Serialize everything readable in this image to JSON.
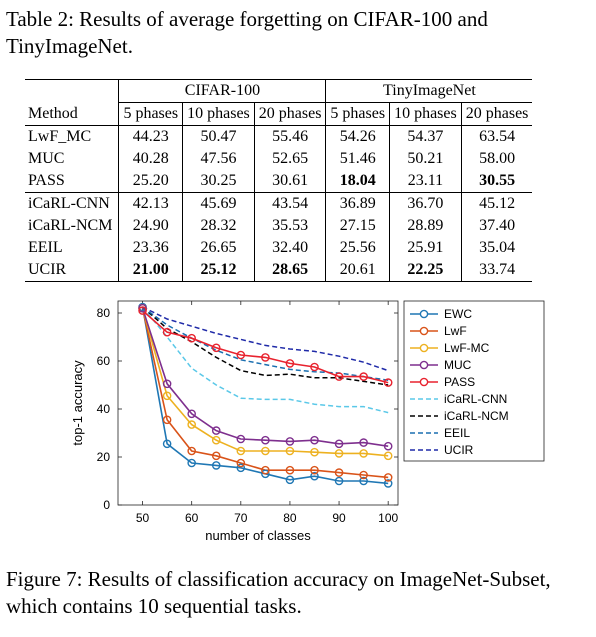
{
  "table_caption": "Table 2: Results of average forgetting on CIFAR-100 and TinyImageNet.",
  "table": {
    "group_headers": [
      "CIFAR-100",
      "TinyImageNet"
    ],
    "method_header": "Method",
    "phase_headers": [
      "5 phases",
      "10 phases",
      "20 phases",
      "5 phases",
      "10 phases",
      "20 phases"
    ],
    "rows": [
      {
        "method": "LwF_MC",
        "values": [
          "44.23",
          "50.47",
          "55.46",
          "54.26",
          "54.37",
          "63.54"
        ],
        "bold": []
      },
      {
        "method": "MUC",
        "values": [
          "40.28",
          "47.56",
          "52.65",
          "51.46",
          "50.21",
          "58.00"
        ],
        "bold": []
      },
      {
        "method": "PASS",
        "values": [
          "25.20",
          "30.25",
          "30.61",
          "18.04",
          "23.11",
          "30.55"
        ],
        "bold": [
          3,
          5
        ]
      },
      {
        "method": "iCaRL-CNN",
        "values": [
          "42.13",
          "45.69",
          "43.54",
          "36.89",
          "36.70",
          "45.12"
        ],
        "bold": []
      },
      {
        "method": "iCaRL-NCM",
        "values": [
          "24.90",
          "28.32",
          "35.53",
          "27.15",
          "28.89",
          "37.40"
        ],
        "bold": []
      },
      {
        "method": "EEIL",
        "values": [
          "23.36",
          "26.65",
          "32.40",
          "25.56",
          "25.91",
          "35.04"
        ],
        "bold": []
      },
      {
        "method": "UCIR",
        "values": [
          "21.00",
          "25.12",
          "28.65",
          "20.61",
          "22.25",
          "33.74"
        ],
        "bold": [
          0,
          1,
          2,
          4
        ]
      }
    ]
  },
  "figure_caption": "Figure 7: Results of classification accuracy on ImageNet-Subset, which contains 10 sequential tasks.",
  "chart_data": {
    "type": "line",
    "xlabel": "number of classes",
    "ylabel": "top-1 accuracy",
    "xlim": [
      45,
      102
    ],
    "ylim": [
      0,
      85
    ],
    "xticks": [
      50,
      60,
      70,
      80,
      90,
      100
    ],
    "yticks": [
      0,
      20,
      40,
      60,
      80
    ],
    "grid": false,
    "legend_position": "right",
    "x": [
      50,
      55,
      60,
      65,
      70,
      75,
      80,
      85,
      90,
      95,
      100
    ],
    "series": [
      {
        "name": "EWC",
        "color": "#1f77b4",
        "dash": "solid",
        "marker": true,
        "values": [
          82.5,
          25.5,
          17.5,
          16.5,
          15.5,
          13,
          10.5,
          12,
          10,
          10,
          9
        ]
      },
      {
        "name": "LwF",
        "color": "#d95319",
        "dash": "solid",
        "marker": true,
        "values": [
          82,
          35.5,
          22.5,
          20.5,
          17.5,
          14.5,
          14.5,
          14.5,
          13.5,
          12.5,
          11.5
        ]
      },
      {
        "name": "LwF-MC",
        "color": "#edb120",
        "dash": "solid",
        "marker": true,
        "values": [
          82,
          45.5,
          33.5,
          27,
          22.5,
          22.5,
          22.5,
          22,
          21.5,
          21.5,
          20.5
        ]
      },
      {
        "name": "MUC",
        "color": "#7e2f8e",
        "dash": "solid",
        "marker": true,
        "values": [
          82,
          50.5,
          38,
          31,
          27.5,
          27,
          26.5,
          27,
          25.5,
          26,
          24.5
        ]
      },
      {
        "name": "PASS",
        "color": "#e8222e",
        "dash": "solid",
        "marker": true,
        "values": [
          81,
          72,
          69.5,
          65.5,
          62.5,
          61.5,
          59,
          57.5,
          53.5,
          53.5,
          51
        ]
      },
      {
        "name": "iCaRL-CNN",
        "color": "#5ac8e8",
        "dash": "dashed",
        "marker": false,
        "values": [
          82.5,
          70,
          57,
          50,
          44.5,
          44,
          44,
          42,
          41,
          41,
          38.5
        ]
      },
      {
        "name": "iCaRL-NCM",
        "color": "#000000",
        "dash": "dashed",
        "marker": false,
        "values": [
          82.5,
          73.5,
          68,
          61.5,
          56,
          54,
          54.5,
          53,
          53,
          51.5,
          50
        ]
      },
      {
        "name": "EEIL",
        "color": "#1a6fb0",
        "dash": "dashed",
        "marker": false,
        "values": [
          82.5,
          75,
          69.5,
          64.5,
          60.5,
          58.5,
          56.5,
          55.5,
          55,
          53.5,
          52
        ]
      },
      {
        "name": "UCIR",
        "color": "#1f2aa8",
        "dash": "dashed",
        "marker": false,
        "values": [
          82.5,
          77.5,
          74.5,
          71.5,
          69,
          66.5,
          65,
          64,
          62,
          59.5,
          56
        ]
      }
    ]
  }
}
